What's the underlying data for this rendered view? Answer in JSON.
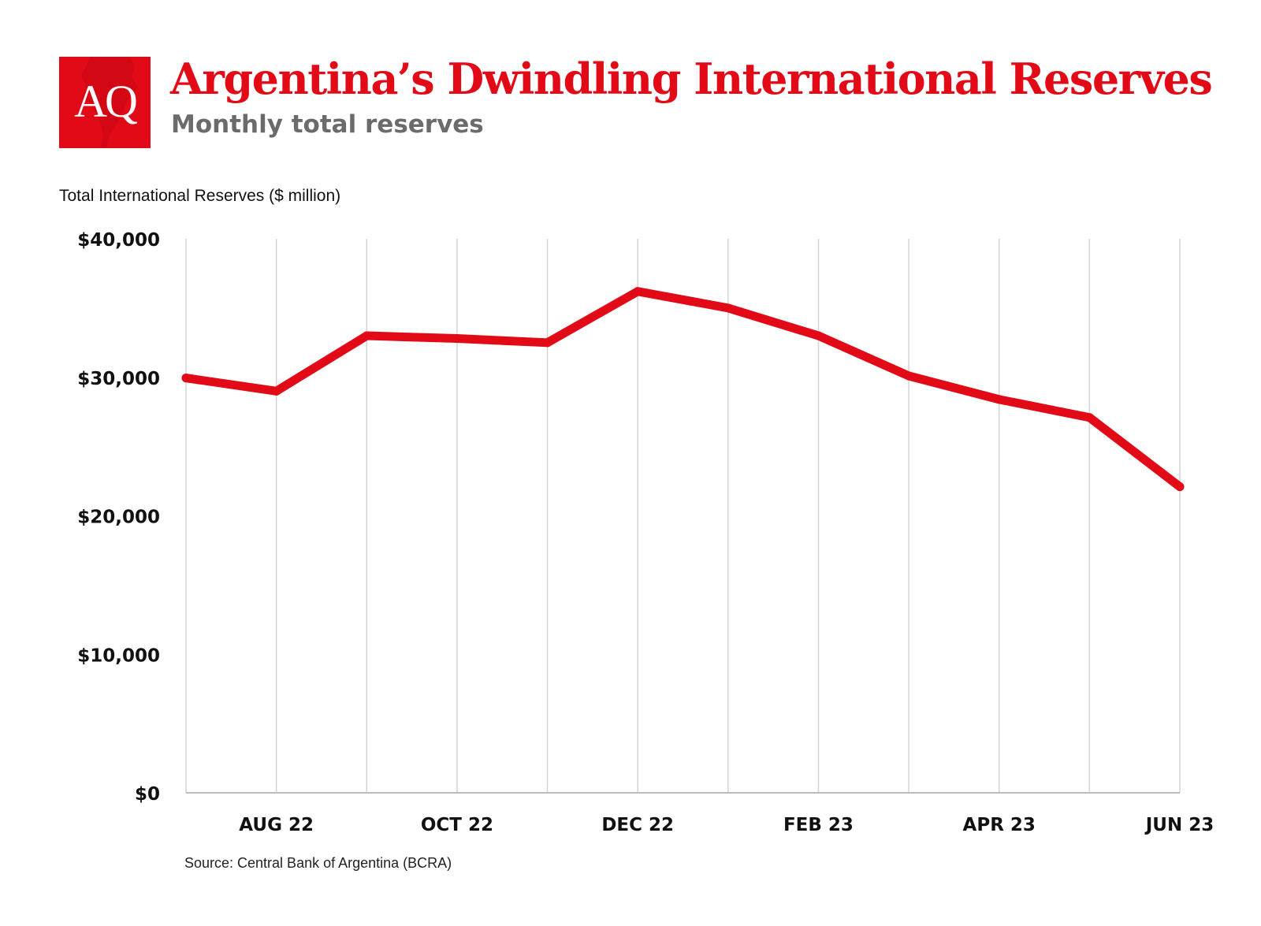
{
  "header": {
    "logo_text": "AQ",
    "title": "Argentina’s Dwindling International Reserves",
    "subtitle": "Monthly total reserves"
  },
  "colors": {
    "brand_red": "#e30a17",
    "grid": "#d4d4d4",
    "axis": "#bdbdbd"
  },
  "chart_data": {
    "type": "line",
    "title": "Argentina’s Dwindling International Reserves",
    "subtitle": "Monthly total reserves",
    "ylabel": "Total International Reserves ($ million)",
    "xlabel": "",
    "ylim": [
      0,
      40000
    ],
    "yticks": [
      0,
      10000,
      20000,
      30000,
      40000
    ],
    "ytick_labels": [
      "$0",
      "$10,000",
      "$20,000",
      "$30,000",
      "$40,000"
    ],
    "categories": [
      "JUL 22",
      "AUG 22",
      "SEP 22",
      "OCT 22",
      "NOV 22",
      "DEC 22",
      "JAN 23",
      "FEB 23",
      "MAR 23",
      "APR 23",
      "MAY 23",
      "JUN 23"
    ],
    "xtick_labels": [
      "AUG 22",
      "OCT 22",
      "DEC 22",
      "FEB 23",
      "APR 23",
      "JUN 23"
    ],
    "series": [
      {
        "name": "Total International Reserves",
        "values": [
          29950,
          29000,
          33000,
          32800,
          32500,
          36200,
          35000,
          33000,
          30100,
          28400,
          27100,
          22100
        ]
      }
    ],
    "grid": true,
    "legend": "none"
  },
  "footer": {
    "source": "Source: Central Bank of Argentina (BCRA)"
  }
}
